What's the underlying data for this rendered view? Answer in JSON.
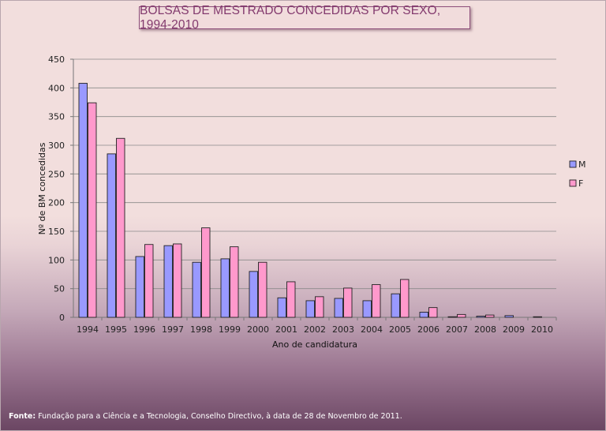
{
  "chart_data": {
    "type": "bar",
    "title": "BOLSAS DE MESTRADO CONCEDIDAS POR SEXO, 1994-2010",
    "xlabel": "Ano de candidatura",
    "ylabel": "Nº de BM concedidas",
    "ylim": [
      0,
      450
    ],
    "yticks": [
      "0",
      "50",
      "100",
      "150",
      "200",
      "250",
      "300",
      "350",
      "400",
      "450"
    ],
    "categories": [
      "1994",
      "1995",
      "1996",
      "1997",
      "1998",
      "1999",
      "2000",
      "2001",
      "2002",
      "2003",
      "2004",
      "2005",
      "2006",
      "2007",
      "2008",
      "2009",
      "2010"
    ],
    "series": [
      {
        "name": "M",
        "color": "#9999ff",
        "values": [
          408,
          285,
          106,
          125,
          96,
          102,
          80,
          34,
          29,
          33,
          29,
          41,
          9,
          1,
          2,
          3,
          1
        ]
      },
      {
        "name": "F",
        "color": "#ff99cc",
        "values": [
          374,
          312,
          127,
          128,
          156,
          123,
          96,
          62,
          36,
          51,
          57,
          66,
          17,
          5,
          4,
          0,
          0
        ]
      }
    ],
    "grid": true,
    "legend_position": "right"
  },
  "source": {
    "label": "Fonte:",
    "text": " Fundação para a Ciência e a Tecnologia, Conselho Directivo, à data de 28 de Novembro de 2011."
  }
}
